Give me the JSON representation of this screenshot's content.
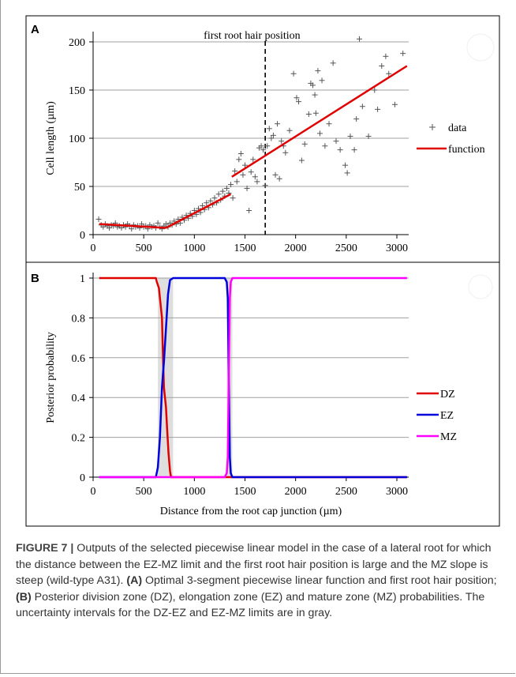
{
  "chart_data": [
    {
      "panel": "A",
      "type": "scatter",
      "annotation": "first root hair position",
      "ylabel": "Cell length (µm)",
      "xlim": [
        0,
        3100
      ],
      "ylim": [
        0,
        210
      ],
      "xticks": [
        0,
        500,
        1000,
        1500,
        2000,
        2500,
        3000
      ],
      "yticks": [
        0,
        50,
        100,
        150,
        200
      ],
      "vline_x": 1700,
      "legend": [
        "data",
        "function"
      ],
      "legend_position": "right",
      "grid": true,
      "series": [
        {
          "name": "data",
          "marker": "+",
          "points": [
            [
              55,
              16
            ],
            [
              80,
              10
            ],
            [
              100,
              8
            ],
            [
              120,
              11
            ],
            [
              140,
              9
            ],
            [
              160,
              7
            ],
            [
              180,
              10
            ],
            [
              200,
              9
            ],
            [
              220,
              12
            ],
            [
              240,
              8
            ],
            [
              260,
              9
            ],
            [
              280,
              7
            ],
            [
              300,
              10
            ],
            [
              320,
              8
            ],
            [
              340,
              11
            ],
            [
              360,
              9
            ],
            [
              380,
              6
            ],
            [
              400,
              10
            ],
            [
              420,
              8
            ],
            [
              440,
              9
            ],
            [
              460,
              7
            ],
            [
              480,
              11
            ],
            [
              500,
              8
            ],
            [
              520,
              9
            ],
            [
              540,
              6
            ],
            [
              560,
              10
            ],
            [
              580,
              8
            ],
            [
              600,
              9
            ],
            [
              620,
              7
            ],
            [
              640,
              12
            ],
            [
              660,
              8
            ],
            [
              680,
              6
            ],
            [
              700,
              9
            ],
            [
              720,
              11
            ],
            [
              740,
              8
            ],
            [
              760,
              12
            ],
            [
              780,
              10
            ],
            [
              800,
              14
            ],
            [
              820,
              11
            ],
            [
              840,
              16
            ],
            [
              860,
              12
            ],
            [
              880,
              18
            ],
            [
              900,
              15
            ],
            [
              920,
              20
            ],
            [
              940,
              17
            ],
            [
              960,
              22
            ],
            [
              980,
              19
            ],
            [
              1000,
              25
            ],
            [
              1020,
              21
            ],
            [
              1040,
              27
            ],
            [
              1060,
              23
            ],
            [
              1080,
              30
            ],
            [
              1100,
              26
            ],
            [
              1120,
              33
            ],
            [
              1140,
              28
            ],
            [
              1160,
              35
            ],
            [
              1180,
              31
            ],
            [
              1200,
              38
            ],
            [
              1220,
              33
            ],
            [
              1240,
              42
            ],
            [
              1260,
              36
            ],
            [
              1280,
              45
            ],
            [
              1300,
              40
            ],
            [
              1320,
              48
            ],
            [
              1340,
              43
            ],
            [
              1360,
              52
            ],
            [
              1380,
              38
            ],
            [
              1400,
              66
            ],
            [
              1420,
              55
            ],
            [
              1440,
              78
            ],
            [
              1460,
              84
            ],
            [
              1480,
              62
            ],
            [
              1500,
              72
            ],
            [
              1520,
              48
            ],
            [
              1540,
              25
            ],
            [
              1560,
              65
            ],
            [
              1580,
              78
            ],
            [
              1600,
              60
            ],
            [
              1620,
              55
            ],
            [
              1640,
              90
            ],
            [
              1660,
              92
            ],
            [
              1680,
              88
            ],
            [
              1700,
              51
            ],
            [
              1720,
              92
            ],
            [
              1740,
              110
            ],
            [
              1760,
              100
            ],
            [
              1780,
              103
            ],
            [
              1800,
              62
            ],
            [
              1820,
              115
            ],
            [
              1840,
              58
            ],
            [
              1860,
              97
            ],
            [
              1880,
              92
            ],
            [
              1900,
              85
            ],
            [
              1940,
              108
            ],
            [
              1980,
              167
            ],
            [
              2010,
              142
            ],
            [
              2030,
              138
            ],
            [
              2060,
              77
            ],
            [
              2090,
              94
            ],
            [
              2130,
              125
            ],
            [
              2150,
              157
            ],
            [
              2170,
              155
            ],
            [
              2190,
              145
            ],
            [
              2200,
              126
            ],
            [
              2220,
              170
            ],
            [
              2240,
              105
            ],
            [
              2260,
              160
            ],
            [
              2290,
              92
            ],
            [
              2330,
              115
            ],
            [
              2370,
              178
            ],
            [
              2400,
              97
            ],
            [
              2440,
              88
            ],
            [
              2490,
              72
            ],
            [
              2510,
              64
            ],
            [
              2540,
              102
            ],
            [
              2580,
              88
            ],
            [
              2600,
              120
            ],
            [
              2630,
              203
            ],
            [
              2660,
              133
            ],
            [
              2720,
              102
            ],
            [
              2780,
              150
            ],
            [
              2810,
              130
            ],
            [
              2850,
              175
            ],
            [
              2890,
              185
            ],
            [
              2920,
              167
            ],
            [
              2980,
              135
            ],
            [
              3060,
              188
            ]
          ]
        },
        {
          "name": "function",
          "segments": [
            [
              [
                60,
                11
              ],
              [
                720,
                7
              ]
            ],
            [
              [
                720,
                7
              ],
              [
                1360,
                42
              ]
            ],
            [
              [
                1370,
                60
              ],
              [
                3100,
                175
              ]
            ]
          ]
        }
      ]
    },
    {
      "panel": "B",
      "type": "line",
      "xlabel": "Distance from the root cap junction (µm)",
      "ylabel": "Posterior probability",
      "xlim": [
        0,
        3100
      ],
      "ylim": [
        0,
        1
      ],
      "xticks": [
        0,
        500,
        1000,
        1500,
        2000,
        2500,
        3000
      ],
      "yticks": [
        0,
        0.2,
        0.4,
        0.6,
        0.8,
        1
      ],
      "ytick_labels": [
        "0",
        "0.2",
        "0.4",
        "0.6",
        "0.8",
        "1"
      ],
      "legend_position": "right",
      "grid": true,
      "uncertainty_intervals": [
        [
          640,
          790
        ],
        [
          1320,
          1375
        ]
      ],
      "series": [
        {
          "name": "DZ",
          "color": "#e00000",
          "points": [
            [
              60,
              1
            ],
            [
              620,
              1
            ],
            [
              630,
              0.98
            ],
            [
              650,
              0.95
            ],
            [
              660,
              0.9
            ],
            [
              680,
              0.8
            ],
            [
              690,
              0.6
            ],
            [
              700,
              0.45
            ],
            [
              720,
              0.35
            ],
            [
              730,
              0.25
            ],
            [
              745,
              0.12
            ],
            [
              760,
              0.03
            ],
            [
              770,
              0
            ],
            [
              3100,
              0
            ]
          ]
        },
        {
          "name": "EZ",
          "color": "#0000dd",
          "points": [
            [
              60,
              0
            ],
            [
              620,
              0
            ],
            [
              640,
              0.05
            ],
            [
              660,
              0.2
            ],
            [
              680,
              0.45
            ],
            [
              690,
              0.52
            ],
            [
              700,
              0.58
            ],
            [
              720,
              0.75
            ],
            [
              740,
              0.92
            ],
            [
              760,
              0.99
            ],
            [
              790,
              1
            ],
            [
              1300,
              1
            ],
            [
              1320,
              0.98
            ],
            [
              1330,
              0.9
            ],
            [
              1340,
              0.5
            ],
            [
              1350,
              0.1
            ],
            [
              1360,
              0.02
            ],
            [
              1375,
              0
            ],
            [
              3100,
              0
            ]
          ]
        },
        {
          "name": "MZ",
          "color": "#ff00ff",
          "points": [
            [
              60,
              0
            ],
            [
              1300,
              0
            ],
            [
              1320,
              0.02
            ],
            [
              1330,
              0.1
            ],
            [
              1340,
              0.5
            ],
            [
              1350,
              0.9
            ],
            [
              1360,
              0.98
            ],
            [
              1375,
              1
            ],
            [
              3100,
              1
            ]
          ]
        }
      ]
    }
  ],
  "colors": {
    "function_line": "#e00000",
    "data_marker": "#555555",
    "grid": "#a0a0a0",
    "uncertainty_band": "#c8c8c8"
  },
  "caption": {
    "figure_label": "FIGURE 7 |",
    "text1": " Outputs of the selected piecewise linear model in the case of a lateral root for which the distance between the EZ-MZ limit and the first root hair position is large and the MZ slope is steep (wild-type A31). ",
    "panel_a": "(A)",
    "text2": " Optimal 3-segment piecewise linear function and first root hair position; ",
    "panel_b": "(B)",
    "text3": " Posterior division zone (DZ), elongation zone (EZ) and mature zone (MZ) probabilities. The uncertainty intervals for the DZ-EZ and EZ-MZ limits are in gray."
  }
}
